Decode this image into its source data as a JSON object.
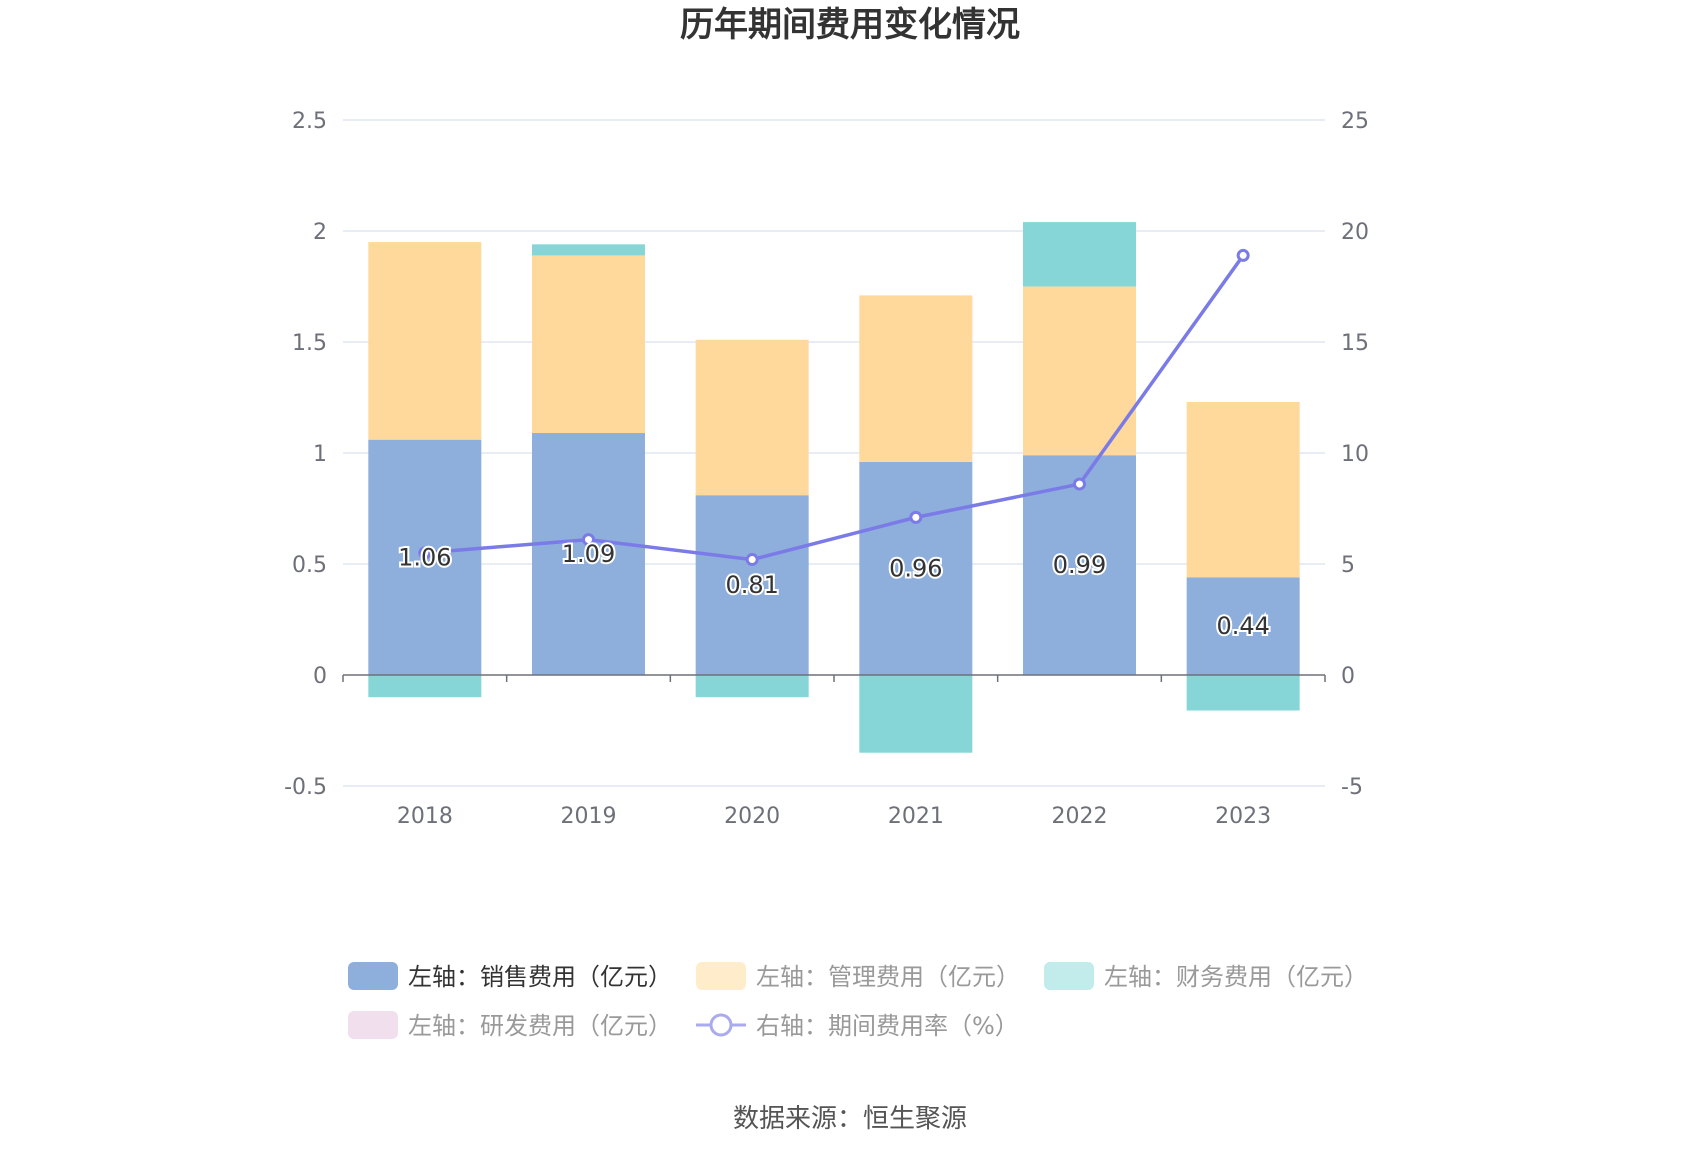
{
  "chart_data": {
    "type": "bar",
    "title": "历年期间费用变化情况",
    "categories": [
      "2018",
      "2019",
      "2020",
      "2021",
      "2022",
      "2023"
    ],
    "series": [
      {
        "name": "左轴：销售费用（亿元）",
        "axis": "left",
        "type": "bar",
        "color": "#8eaedb",
        "values": [
          1.06,
          1.09,
          0.81,
          0.96,
          0.99,
          0.44
        ]
      },
      {
        "name": "左轴：管理费用（亿元）",
        "axis": "left",
        "type": "bar",
        "color": "#fed99b",
        "values": [
          0.89,
          0.8,
          0.7,
          0.75,
          0.76,
          0.79
        ]
      },
      {
        "name": "左轴：财务费用（亿元）",
        "axis": "left",
        "type": "bar",
        "color": "#86d6d8",
        "values": [
          -0.1,
          0.05,
          -0.1,
          -0.35,
          0.29,
          -0.16
        ]
      },
      {
        "name": "左轴：研发费用（亿元）",
        "axis": "left",
        "type": "bar",
        "color": "#f0d9eb",
        "values": [
          0,
          0,
          0,
          0,
          0,
          0
        ]
      },
      {
        "name": "右轴：期间费用率（%）",
        "axis": "right",
        "type": "line",
        "color": "#7b7be8",
        "values": [
          5.5,
          6.1,
          5.2,
          7.1,
          8.6,
          18.9
        ]
      }
    ],
    "left_axis": {
      "ylim": [
        -0.5,
        2.5
      ],
      "ticks": [
        "-0.5",
        "0",
        "0.5",
        "1",
        "1.5",
        "2",
        "2.5"
      ]
    },
    "right_axis": {
      "ylim": [
        -5,
        25
      ],
      "ticks": [
        "-5",
        "0",
        "5",
        "10",
        "15",
        "20",
        "25"
      ]
    },
    "data_labels": [
      "1.06",
      "1.09",
      "0.81",
      "0.96",
      "0.99",
      "0.44"
    ],
    "grid": true,
    "legend_position": "bottom"
  },
  "source": "数据来源：恒生聚源"
}
